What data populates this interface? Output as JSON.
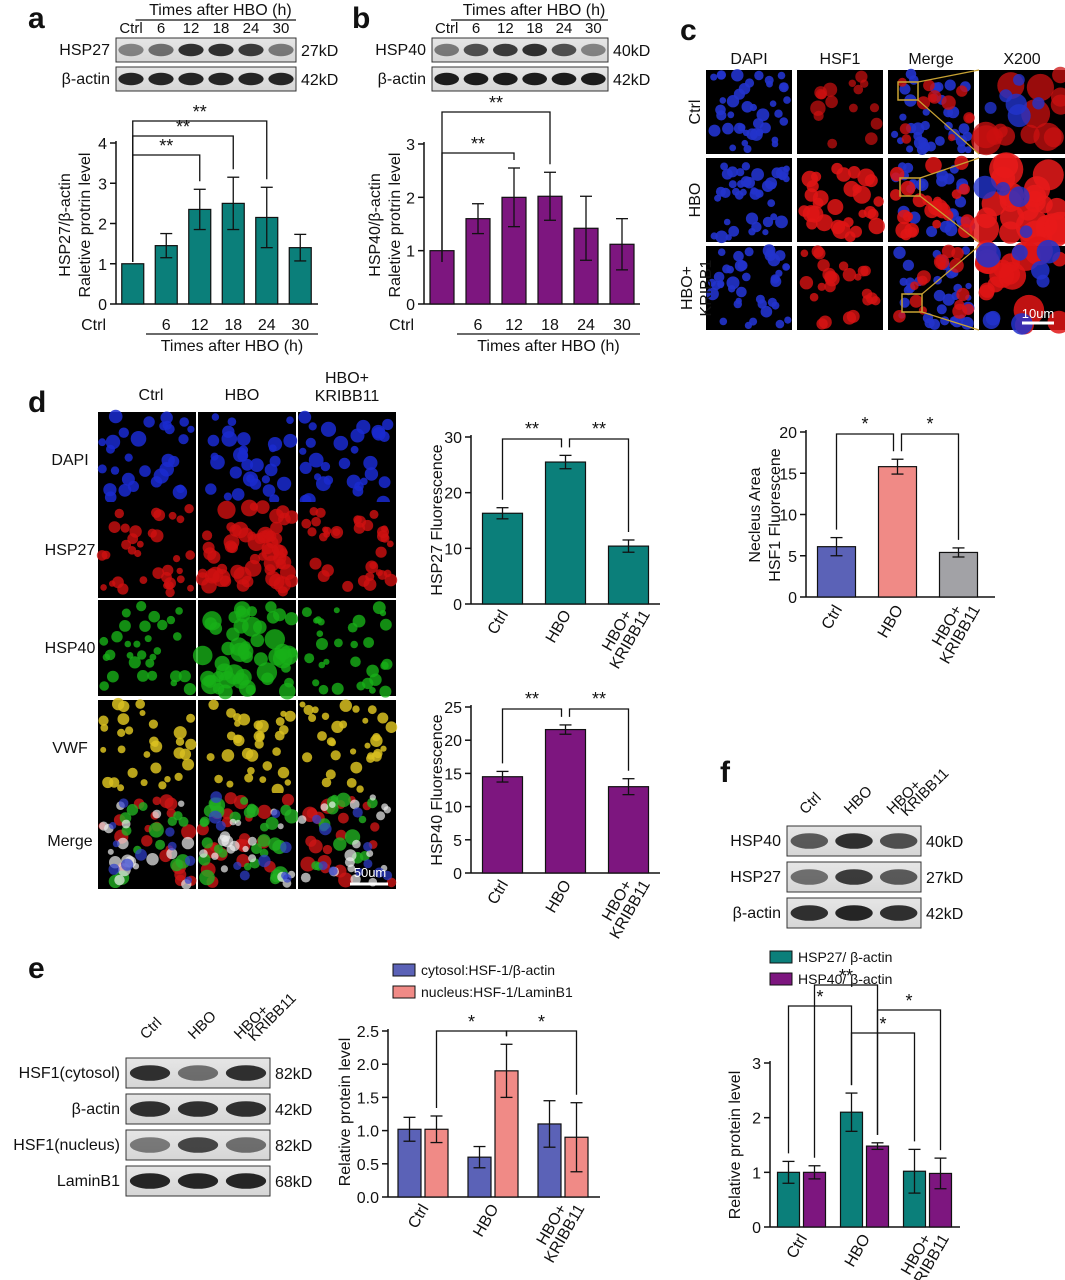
{
  "colors": {
    "teal": "#0b7f7a",
    "purple": "#7d167f",
    "blue": "#5b62b7",
    "salmon": "#f08a86",
    "gray": "#a2a2a6",
    "gold": "#c8a233"
  },
  "panel_labels": [
    "a",
    "b",
    "c",
    "d",
    "e",
    "f"
  ],
  "blots": {
    "a": {
      "header": "Times after HBO (h)",
      "lanes": [
        "Ctrl",
        "6",
        "12",
        "18",
        "24",
        "30"
      ],
      "rows": [
        {
          "name": "HSP27",
          "kd": "27kD"
        },
        {
          "name": "β-actin",
          "kd": "42kD"
        }
      ]
    },
    "b": {
      "header": "Times after HBO (h)",
      "lanes": [
        "Ctrl",
        "6",
        "12",
        "18",
        "24",
        "30"
      ],
      "rows": [
        {
          "name": "HSP40",
          "kd": "40kD"
        },
        {
          "name": "β-actin",
          "kd": "42kD"
        }
      ]
    },
    "e": {
      "lanes": [
        "Ctrl",
        "HBO",
        "HBO+ KRIBB11"
      ],
      "rows": [
        {
          "name": "HSF1(cytosol)",
          "kd": "82kD"
        },
        {
          "name": "β-actin",
          "kd": "42kD"
        },
        {
          "name": "HSF1(nucleus)",
          "kd": "82kD"
        },
        {
          "name": "LaminB1",
          "kd": "68kD"
        }
      ]
    },
    "f": {
      "lanes": [
        "Ctrl",
        "HBO",
        "HBO+ KRIBB11"
      ],
      "rows": [
        {
          "name": "HSP40",
          "kd": "40kD"
        },
        {
          "name": "HSP27",
          "kd": "27kD"
        },
        {
          "name": "β-actin",
          "kd": "42kD"
        }
      ]
    }
  },
  "micro_c": {
    "cols": [
      "DAPI",
      "HSF1",
      "Merge",
      "X200"
    ],
    "rows": [
      "Ctrl",
      "HBO",
      "HBO+ KRIBB1"
    ],
    "scale": "10um"
  },
  "micro_d": {
    "cols": [
      "Ctrl",
      "HBO",
      "HBO+ KRIBB11"
    ],
    "rows": [
      "DAPI",
      "HSP27",
      "HSP40",
      "VWF",
      "Merge"
    ],
    "scale": "50um"
  },
  "chart_data": [
    {
      "id": "a",
      "type": "bar",
      "categories": [
        "Ctrl",
        "6",
        "12",
        "18",
        "24",
        "30"
      ],
      "values": [
        1.0,
        1.45,
        2.35,
        2.5,
        2.15,
        1.4
      ],
      "errors": [
        0,
        0.3,
        0.5,
        0.65,
        0.75,
        0.33
      ],
      "ylabel": "HSP27/β-actin Raletive protrin level",
      "xgroup_label": "Times after HBO (h)",
      "ylim": [
        0,
        4
      ],
      "yticks": [
        0,
        1,
        2,
        3,
        4
      ],
      "color": "teal",
      "significance": [
        {
          "from": 0,
          "to": 2,
          "label": "**"
        },
        {
          "from": 0,
          "to": 3,
          "label": "**"
        },
        {
          "from": 0,
          "to": 4,
          "label": "**"
        }
      ]
    },
    {
      "id": "b",
      "type": "bar",
      "categories": [
        "Ctrl",
        "6",
        "12",
        "18",
        "24",
        "30"
      ],
      "values": [
        1.0,
        1.6,
        2.0,
        2.02,
        1.42,
        1.12
      ],
      "errors": [
        0,
        0.28,
        0.55,
        0.45,
        0.6,
        0.48
      ],
      "ylabel": "HSP40/β-actin Raletive protrin level",
      "xgroup_label": "Times after HBO (h)",
      "ylim": [
        0,
        3
      ],
      "yticks": [
        0,
        1,
        2,
        3
      ],
      "color": "purple",
      "significance": [
        {
          "from": 0,
          "to": 2,
          "label": "**"
        },
        {
          "from": 0,
          "to": 3,
          "label": "**"
        }
      ]
    },
    {
      "id": "d1",
      "type": "bar",
      "categories": [
        "Ctrl",
        "HBO",
        "HBO+ KRIBB11"
      ],
      "values": [
        16.3,
        25.5,
        10.4
      ],
      "errors": [
        1.0,
        1.2,
        1.1
      ],
      "ylabel": "HSP27 Fluorescence",
      "ylim": [
        0,
        30
      ],
      "yticks": [
        0,
        10,
        20,
        30
      ],
      "color": "teal",
      "significance": [
        {
          "from": 0,
          "to": 1,
          "label": "**"
        },
        {
          "from": 1,
          "to": 2,
          "label": "**"
        }
      ]
    },
    {
      "id": "d2",
      "type": "bar",
      "categories": [
        "Ctrl",
        "HBO",
        "HBO+ KRIBB11"
      ],
      "values": [
        14.5,
        21.6,
        13.0
      ],
      "errors": [
        0.8,
        0.7,
        1.2
      ],
      "ylabel": "HSP40 Fluorescence",
      "ylim": [
        0,
        25
      ],
      "yticks": [
        0,
        5,
        10,
        15,
        20,
        25
      ],
      "color": "purple",
      "significance": [
        {
          "from": 0,
          "to": 1,
          "label": "**"
        },
        {
          "from": 1,
          "to": 2,
          "label": "**"
        }
      ]
    },
    {
      "id": "d3",
      "type": "bar",
      "categories": [
        "Ctrl",
        "HBO",
        "HBO+ KRIBB11"
      ],
      "values": [
        6.1,
        15.8,
        5.4
      ],
      "errors": [
        1.1,
        0.9,
        0.55
      ],
      "ylabel": "Necleus Area HSF1 Fluorescene",
      "ylim": [
        0,
        20
      ],
      "yticks": [
        0,
        5,
        10,
        15,
        20
      ],
      "bar_colors": [
        "blue",
        "salmon",
        "gray"
      ],
      "significance": [
        {
          "from": 0,
          "to": 1,
          "label": "*"
        },
        {
          "from": 1,
          "to": 2,
          "label": "*"
        }
      ]
    },
    {
      "id": "e",
      "type": "bar",
      "categories": [
        "Ctrl",
        "HBO",
        "HBO+ KRIBB11"
      ],
      "series": [
        {
          "name": "cytosol:HSF-1/β-actin",
          "values": [
            1.02,
            0.6,
            1.1
          ],
          "errors": [
            0.18,
            0.16,
            0.35
          ],
          "color": "blue"
        },
        {
          "name": "nucleus:HSF-1/LaminB1",
          "values": [
            1.02,
            1.9,
            0.9
          ],
          "errors": [
            0.2,
            0.4,
            0.52
          ],
          "color": "salmon"
        }
      ],
      "ylabel": "Relative protein level",
      "ylim": [
        0,
        2.5
      ],
      "yticks": [
        "0.0",
        "0.5",
        "1.0",
        "1.5",
        "2.0",
        "2.5"
      ],
      "legend": "top",
      "significance": [
        {
          "a": [
            0,
            1
          ],
          "b": [
            1,
            1
          ],
          "label": "*"
        },
        {
          "a": [
            1,
            1
          ],
          "b": [
            2,
            1
          ],
          "label": "*"
        }
      ]
    },
    {
      "id": "f",
      "type": "bar",
      "categories": [
        "Ctrl",
        "HBO",
        "HBO+ KRIBB11"
      ],
      "series": [
        {
          "name": "HSP27/ β-actin",
          "values": [
            1.0,
            2.1,
            1.02
          ],
          "errors": [
            0.2,
            0.35,
            0.4
          ],
          "color": "teal"
        },
        {
          "name": "HSP40/ β-actin",
          "values": [
            1.0,
            1.48,
            0.98
          ],
          "errors": [
            0.12,
            0.06,
            0.28
          ],
          "color": "purple"
        }
      ],
      "ylabel": "Relative protein level",
      "ylim": [
        0,
        3
      ],
      "yticks": [
        0,
        1,
        2,
        3
      ],
      "legend": "top",
      "significance": [
        {
          "a": [
            0,
            0
          ],
          "b": [
            1,
            0
          ],
          "label": "*"
        },
        {
          "a": [
            0,
            1
          ],
          "b": [
            1,
            1
          ],
          "label": "**"
        },
        {
          "a": [
            1,
            0
          ],
          "b": [
            2,
            0
          ],
          "label": "*"
        },
        {
          "a": [
            1,
            1
          ],
          "b": [
            2,
            1
          ],
          "label": "*"
        }
      ]
    }
  ]
}
